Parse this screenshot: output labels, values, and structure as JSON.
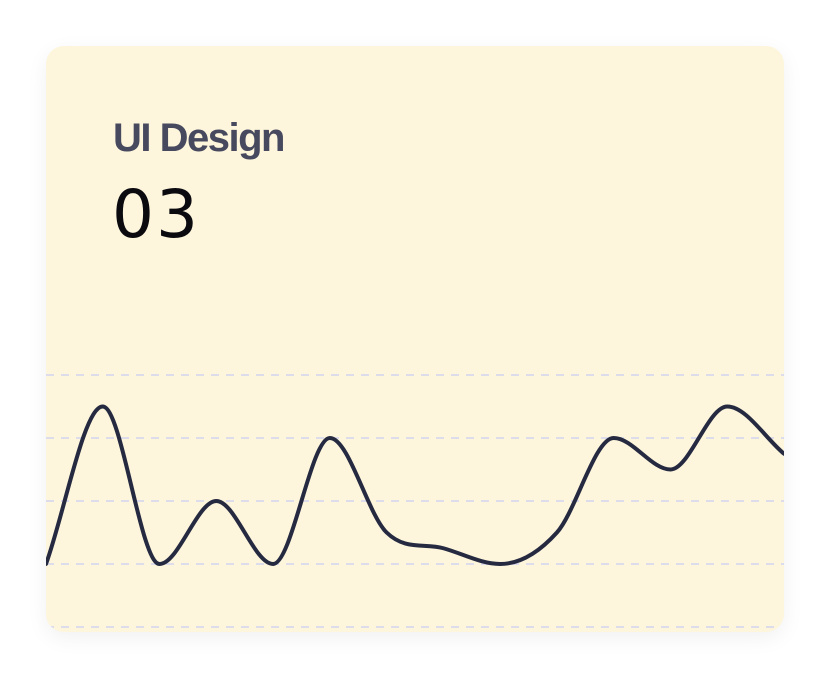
{
  "card": {
    "title": "UI Design",
    "value": "03"
  },
  "colors": {
    "card_background": "#fdf5dc",
    "title": "#474a5e",
    "value": "#0b0b0f",
    "line": "#252a41",
    "grid": "#dcdceb"
  },
  "chart_data": {
    "type": "line",
    "grid": true,
    "grid_style": "dashed",
    "smooth": true,
    "ylim": [
      0,
      4
    ],
    "series": [
      {
        "values": [
          1,
          3.5,
          1,
          2,
          1,
          3,
          1.5,
          1.25,
          1,
          1.5,
          3,
          2.5,
          3.5,
          2.75
        ]
      }
    ]
  }
}
